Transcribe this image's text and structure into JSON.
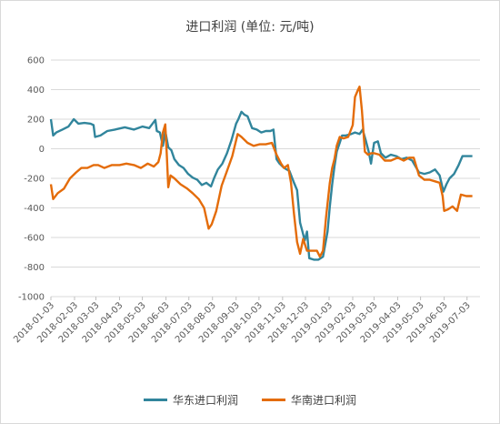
{
  "chart_data": {
    "type": "line",
    "title": "进口利润（单位：元/吨）",
    "title_display": "进口利润  (单位: 元/吨)",
    "xlabel": "",
    "ylabel": "",
    "ylim": [
      -1000,
      600
    ],
    "y_ticks": [
      600,
      400,
      200,
      0,
      -200,
      -400,
      -600,
      -800,
      -1000
    ],
    "x_ticks": [
      "2018-01-03",
      "2018-02-03",
      "2018-03-03",
      "2018-04-03",
      "2018-05-03",
      "2018-06-03",
      "2018-07-03",
      "2018-08-03",
      "2018-09-03",
      "2018-10-03",
      "2018-11-03",
      "2018-12-03",
      "2019-01-03",
      "2019-02-03",
      "2019-03-03",
      "2019-04-03",
      "2019-05-03",
      "2019-06-03",
      "2019-07-03"
    ],
    "grid": "horizontal",
    "legend_position": "bottom",
    "series": [
      {
        "name": "华东进口利润",
        "color": "#31859c",
        "points": [
          [
            "2018-01-03",
            200
          ],
          [
            "2018-01-06",
            90
          ],
          [
            "2018-01-10",
            110
          ],
          [
            "2018-01-18",
            130
          ],
          [
            "2018-01-26",
            150
          ],
          [
            "2018-02-02",
            200
          ],
          [
            "2018-02-08",
            170
          ],
          [
            "2018-02-16",
            175
          ],
          [
            "2018-02-24",
            170
          ],
          [
            "2018-02-28",
            160
          ],
          [
            "2018-03-02",
            80
          ],
          [
            "2018-03-09",
            90
          ],
          [
            "2018-03-18",
            120
          ],
          [
            "2018-03-28",
            130
          ],
          [
            "2018-04-10",
            145
          ],
          [
            "2018-04-22",
            130
          ],
          [
            "2018-05-03",
            150
          ],
          [
            "2018-05-12",
            140
          ],
          [
            "2018-05-20",
            195
          ],
          [
            "2018-05-22",
            120
          ],
          [
            "2018-05-26",
            110
          ],
          [
            "2018-05-30",
            20
          ],
          [
            "2018-06-02",
            120
          ],
          [
            "2018-06-06",
            10
          ],
          [
            "2018-06-10",
            -10
          ],
          [
            "2018-06-14",
            -70
          ],
          [
            "2018-06-20",
            -110
          ],
          [
            "2018-06-26",
            -130
          ],
          [
            "2018-07-02",
            -170
          ],
          [
            "2018-07-08",
            -195
          ],
          [
            "2018-07-14",
            -210
          ],
          [
            "2018-07-20",
            -245
          ],
          [
            "2018-07-26",
            -230
          ],
          [
            "2018-08-01",
            -255
          ],
          [
            "2018-08-05",
            -200
          ],
          [
            "2018-08-10",
            -140
          ],
          [
            "2018-08-16",
            -100
          ],
          [
            "2018-08-22",
            -30
          ],
          [
            "2018-08-28",
            60
          ],
          [
            "2018-09-03",
            170
          ],
          [
            "2018-09-06",
            200
          ],
          [
            "2018-09-10",
            250
          ],
          [
            "2018-09-14",
            230
          ],
          [
            "2018-09-18",
            220
          ],
          [
            "2018-09-24",
            140
          ],
          [
            "2018-09-30",
            130
          ],
          [
            "2018-10-06",
            110
          ],
          [
            "2018-10-12",
            120
          ],
          [
            "2018-10-18",
            120
          ],
          [
            "2018-10-22",
            130
          ],
          [
            "2018-10-26",
            -70
          ],
          [
            "2018-10-30",
            -100
          ],
          [
            "2018-11-05",
            -130
          ],
          [
            "2018-11-12",
            -150
          ],
          [
            "2018-11-18",
            -230
          ],
          [
            "2018-11-22",
            -280
          ],
          [
            "2018-11-26",
            -500
          ],
          [
            "2018-11-29",
            -560
          ],
          [
            "2018-12-02",
            -620
          ],
          [
            "2018-12-05",
            -560
          ],
          [
            "2018-12-08",
            -740
          ],
          [
            "2018-12-14",
            -750
          ],
          [
            "2018-12-20",
            -750
          ],
          [
            "2018-12-26",
            -730
          ],
          [
            "2019-01-01",
            -560
          ],
          [
            "2019-01-04",
            -390
          ],
          [
            "2019-01-07",
            -240
          ],
          [
            "2019-01-10",
            -120
          ],
          [
            "2019-01-13",
            -20
          ],
          [
            "2019-01-17",
            40
          ],
          [
            "2019-01-20",
            90
          ],
          [
            "2019-01-25",
            90
          ],
          [
            "2019-02-01",
            100
          ],
          [
            "2019-02-06",
            110
          ],
          [
            "2019-02-12",
            100
          ],
          [
            "2019-02-16",
            130
          ],
          [
            "2019-02-20",
            60
          ],
          [
            "2019-02-24",
            -20
          ],
          [
            "2019-02-27",
            -100
          ],
          [
            "2019-03-03",
            40
          ],
          [
            "2019-03-08",
            50
          ],
          [
            "2019-03-12",
            -30
          ],
          [
            "2019-03-18",
            -60
          ],
          [
            "2019-03-25",
            -40
          ],
          [
            "2019-04-01",
            -50
          ],
          [
            "2019-04-08",
            -70
          ],
          [
            "2019-04-15",
            -60
          ],
          [
            "2019-04-22",
            -80
          ],
          [
            "2019-05-01",
            -160
          ],
          [
            "2019-05-08",
            -170
          ],
          [
            "2019-05-15",
            -160
          ],
          [
            "2019-05-22",
            -140
          ],
          [
            "2019-05-28",
            -180
          ],
          [
            "2019-06-02",
            -290
          ],
          [
            "2019-06-06",
            -240
          ],
          [
            "2019-06-10",
            -200
          ],
          [
            "2019-06-16",
            -170
          ],
          [
            "2019-06-22",
            -110
          ],
          [
            "2019-06-27",
            -50
          ],
          [
            "2019-07-03",
            -50
          ],
          [
            "2019-07-10",
            -50
          ]
        ]
      },
      {
        "name": "华南进口利润",
        "color": "#e46c0a",
        "points": [
          [
            "2018-01-03",
            -240
          ],
          [
            "2018-01-06",
            -340
          ],
          [
            "2018-01-12",
            -300
          ],
          [
            "2018-01-20",
            -270
          ],
          [
            "2018-01-28",
            -200
          ],
          [
            "2018-02-05",
            -160
          ],
          [
            "2018-02-12",
            -130
          ],
          [
            "2018-02-20",
            -130
          ],
          [
            "2018-02-28",
            -110
          ],
          [
            "2018-03-06",
            -110
          ],
          [
            "2018-03-14",
            -130
          ],
          [
            "2018-03-24",
            -110
          ],
          [
            "2018-04-03",
            -110
          ],
          [
            "2018-04-12",
            -100
          ],
          [
            "2018-04-22",
            -110
          ],
          [
            "2018-05-01",
            -130
          ],
          [
            "2018-05-10",
            -100
          ],
          [
            "2018-05-18",
            -120
          ],
          [
            "2018-05-24",
            -90
          ],
          [
            "2018-05-27",
            -30
          ],
          [
            "2018-05-30",
            110
          ],
          [
            "2018-06-02",
            165
          ],
          [
            "2018-06-04",
            -30
          ],
          [
            "2018-06-06",
            -260
          ],
          [
            "2018-06-09",
            -180
          ],
          [
            "2018-06-14",
            -200
          ],
          [
            "2018-06-22",
            -240
          ],
          [
            "2018-07-01",
            -270
          ],
          [
            "2018-07-08",
            -300
          ],
          [
            "2018-07-16",
            -340
          ],
          [
            "2018-07-23",
            -400
          ],
          [
            "2018-07-29",
            -540
          ],
          [
            "2018-08-02",
            -510
          ],
          [
            "2018-08-08",
            -420
          ],
          [
            "2018-08-15",
            -250
          ],
          [
            "2018-08-22",
            -150
          ],
          [
            "2018-08-29",
            -50
          ],
          [
            "2018-09-05",
            100
          ],
          [
            "2018-09-10",
            80
          ],
          [
            "2018-09-18",
            40
          ],
          [
            "2018-09-26",
            20
          ],
          [
            "2018-10-04",
            30
          ],
          [
            "2018-10-12",
            30
          ],
          [
            "2018-10-20",
            40
          ],
          [
            "2018-10-26",
            -40
          ],
          [
            "2018-11-01",
            -100
          ],
          [
            "2018-11-05",
            -130
          ],
          [
            "2018-11-10",
            -110
          ],
          [
            "2018-11-14",
            -230
          ],
          [
            "2018-11-18",
            -440
          ],
          [
            "2018-11-22",
            -630
          ],
          [
            "2018-11-26",
            -710
          ],
          [
            "2018-11-30",
            -610
          ],
          [
            "2018-12-05",
            -690
          ],
          [
            "2018-12-12",
            -690
          ],
          [
            "2018-12-18",
            -690
          ],
          [
            "2018-12-22",
            -730
          ],
          [
            "2018-12-26",
            -690
          ],
          [
            "2018-12-30",
            -460
          ],
          [
            "2019-01-04",
            -230
          ],
          [
            "2019-01-07",
            -130
          ],
          [
            "2019-01-10",
            -70
          ],
          [
            "2019-01-13",
            20
          ],
          [
            "2019-01-17",
            80
          ],
          [
            "2019-01-22",
            70
          ],
          [
            "2019-01-28",
            80
          ],
          [
            "2019-02-03",
            160
          ],
          [
            "2019-02-06",
            350
          ],
          [
            "2019-02-10",
            400
          ],
          [
            "2019-02-12",
            420
          ],
          [
            "2019-02-15",
            260
          ],
          [
            "2019-02-19",
            -20
          ],
          [
            "2019-02-23",
            -40
          ],
          [
            "2019-02-27",
            -30
          ],
          [
            "2019-03-03",
            -30
          ],
          [
            "2019-03-10",
            -40
          ],
          [
            "2019-03-17",
            -80
          ],
          [
            "2019-03-25",
            -80
          ],
          [
            "2019-04-03",
            -60
          ],
          [
            "2019-04-11",
            -80
          ],
          [
            "2019-04-18",
            -60
          ],
          [
            "2019-04-24",
            -60
          ],
          [
            "2019-05-01",
            -180
          ],
          [
            "2019-05-08",
            -210
          ],
          [
            "2019-05-15",
            -210
          ],
          [
            "2019-05-22",
            -220
          ],
          [
            "2019-05-28",
            -230
          ],
          [
            "2019-06-01",
            -320
          ],
          [
            "2019-06-03",
            -420
          ],
          [
            "2019-06-08",
            -410
          ],
          [
            "2019-06-14",
            -390
          ],
          [
            "2019-06-20",
            -420
          ],
          [
            "2019-06-25",
            -310
          ],
          [
            "2019-07-02",
            -320
          ],
          [
            "2019-07-10",
            -320
          ]
        ]
      }
    ]
  }
}
